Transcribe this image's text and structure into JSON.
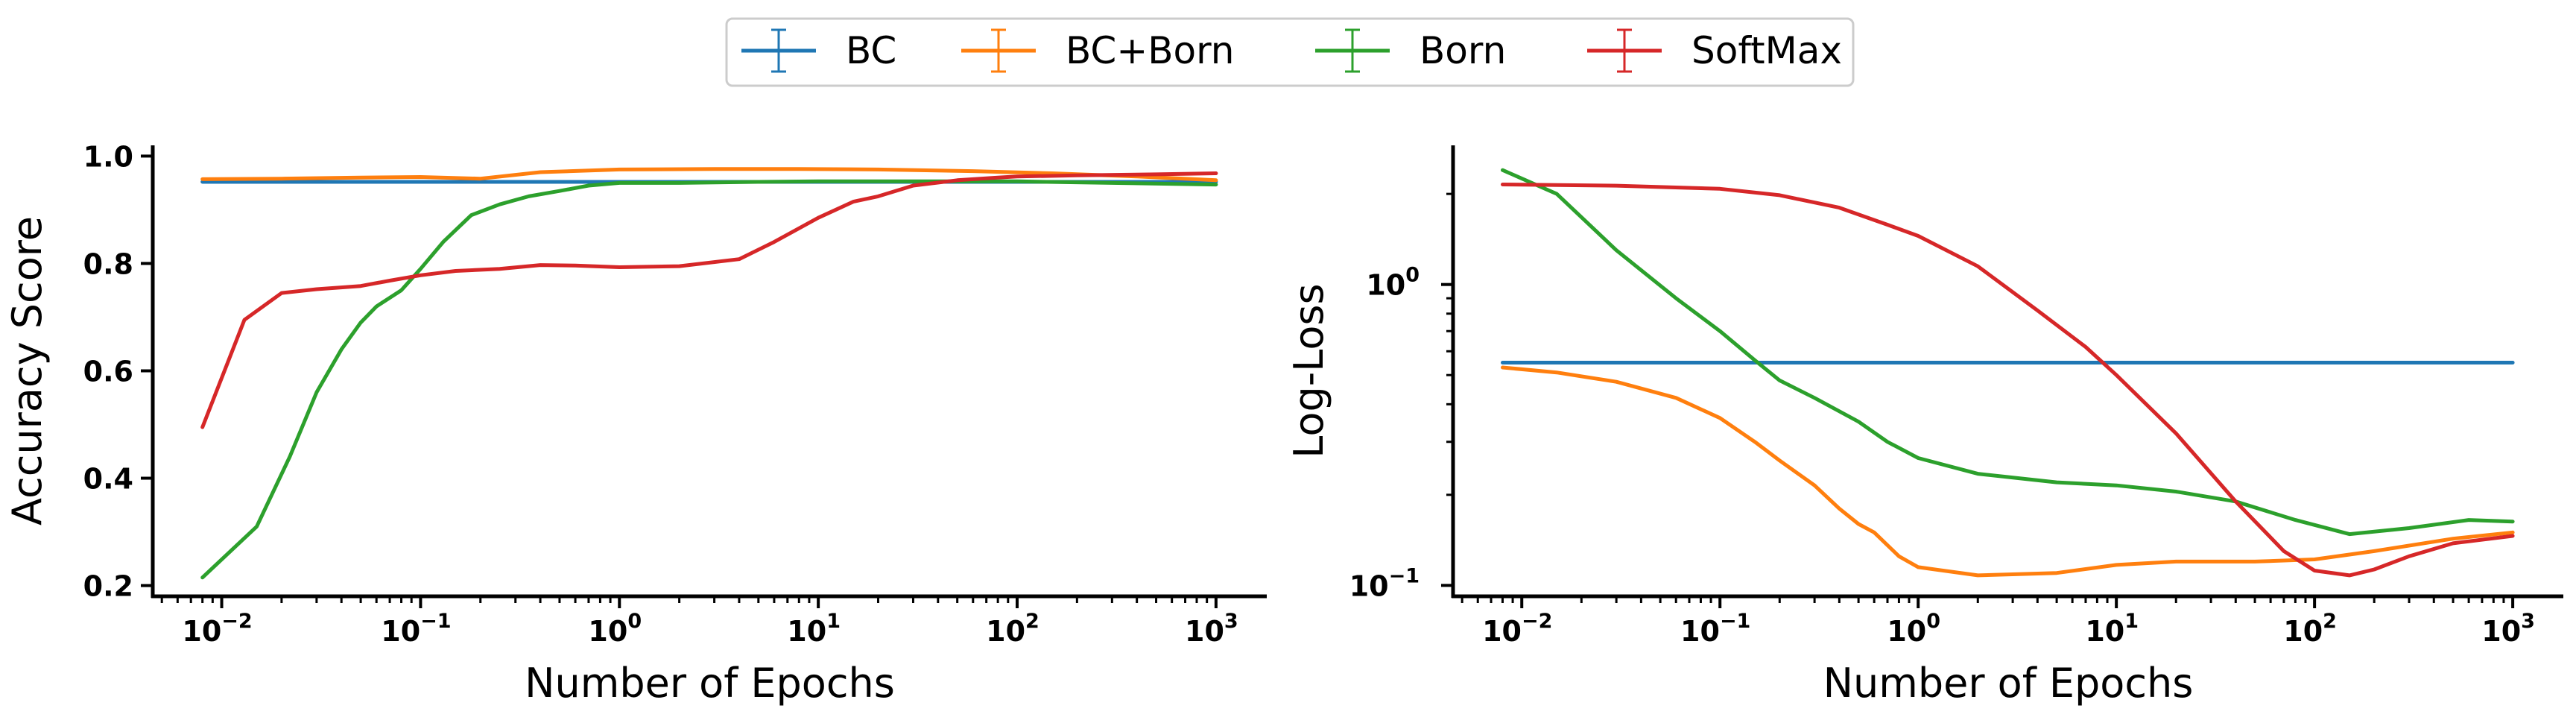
{
  "colors": {
    "BC": "#1f77b4",
    "BC+Born": "#ff7f0e",
    "Born": "#2ca02c",
    "SoftMax": "#d62728"
  },
  "legend": {
    "entries": [
      "BC",
      "BC+Born",
      "Born",
      "SoftMax"
    ],
    "placement": "top-center",
    "marker": "errorbar-line"
  },
  "chart_data": [
    {
      "type": "line",
      "xlabel": "Number of Epochs",
      "ylabel": "Accuracy Score",
      "xscale": "log",
      "xlim": [
        0.0045,
        1800
      ],
      "ylim": [
        0.18,
        1.02
      ],
      "xticks": [
        0.01,
        0.1,
        1,
        10,
        100,
        1000
      ],
      "xtick_labels": [
        {
          "base": "10",
          "exp": "−2"
        },
        {
          "base": "10",
          "exp": "−1"
        },
        {
          "base": "10",
          "exp": "0"
        },
        {
          "base": "10",
          "exp": "1"
        },
        {
          "base": "10",
          "exp": "2"
        },
        {
          "base": "10",
          "exp": "3"
        }
      ],
      "yticks": [
        0.2,
        0.4,
        0.6,
        0.8,
        1.0
      ],
      "ytick_labels": [
        "0.2",
        "0.4",
        "0.6",
        "0.8",
        "1.0"
      ],
      "grid": false,
      "series": [
        {
          "name": "BC",
          "x": [
            0.008,
            0.01,
            0.1,
            1,
            10,
            100,
            1000
          ],
          "y": [
            0.952,
            0.952,
            0.952,
            0.952,
            0.952,
            0.952,
            0.952
          ]
        },
        {
          "name": "BC+Born",
          "x": [
            0.008,
            0.02,
            0.05,
            0.1,
            0.2,
            0.4,
            1,
            3,
            8,
            20,
            60,
            150,
            400,
            1000
          ],
          "y": [
            0.957,
            0.958,
            0.96,
            0.961,
            0.958,
            0.97,
            0.975,
            0.976,
            0.976,
            0.975,
            0.972,
            0.968,
            0.962,
            0.955
          ]
        },
        {
          "name": "Born",
          "x": [
            0.008,
            0.015,
            0.022,
            0.03,
            0.04,
            0.05,
            0.06,
            0.08,
            0.1,
            0.13,
            0.18,
            0.25,
            0.35,
            0.5,
            0.7,
            1,
            2,
            5,
            10,
            30,
            100,
            300,
            1000
          ],
          "y": [
            0.215,
            0.31,
            0.44,
            0.56,
            0.64,
            0.69,
            0.72,
            0.75,
            0.79,
            0.84,
            0.89,
            0.91,
            0.925,
            0.935,
            0.945,
            0.95,
            0.95,
            0.952,
            0.953,
            0.953,
            0.953,
            0.95,
            0.947
          ]
        },
        {
          "name": "SoftMax",
          "x": [
            0.008,
            0.013,
            0.02,
            0.03,
            0.05,
            0.07,
            0.1,
            0.15,
            0.25,
            0.4,
            0.6,
            1,
            2,
            4,
            6,
            10,
            15,
            20,
            30,
            50,
            80,
            100,
            200,
            500,
            1000
          ],
          "y": [
            0.495,
            0.695,
            0.745,
            0.752,
            0.758,
            0.768,
            0.778,
            0.786,
            0.79,
            0.797,
            0.796,
            0.793,
            0.795,
            0.808,
            0.84,
            0.885,
            0.915,
            0.925,
            0.945,
            0.955,
            0.96,
            0.962,
            0.964,
            0.966,
            0.968
          ]
        }
      ]
    },
    {
      "type": "line",
      "xlabel": "Number of Epochs",
      "ylabel": "Log-Loss",
      "xscale": "log",
      "yscale": "log",
      "xlim": [
        0.0045,
        1800
      ],
      "ylim": [
        0.092,
        2.9
      ],
      "xticks": [
        0.01,
        0.1,
        1,
        10,
        100,
        1000
      ],
      "xtick_labels": [
        {
          "base": "10",
          "exp": "−2"
        },
        {
          "base": "10",
          "exp": "−1"
        },
        {
          "base": "10",
          "exp": "0"
        },
        {
          "base": "10",
          "exp": "1"
        },
        {
          "base": "10",
          "exp": "2"
        },
        {
          "base": "10",
          "exp": "3"
        }
      ],
      "yticks": [
        0.1,
        1
      ],
      "ytick_labels": [
        {
          "base": "10",
          "exp": "−1"
        },
        {
          "base": "10",
          "exp": "0"
        }
      ],
      "grid": false,
      "series": [
        {
          "name": "BC",
          "x": [
            0.008,
            1000
          ],
          "y": [
            0.55,
            0.55
          ]
        },
        {
          "name": "BC+Born",
          "x": [
            0.008,
            0.015,
            0.03,
            0.06,
            0.1,
            0.15,
            0.2,
            0.3,
            0.4,
            0.5,
            0.6,
            0.8,
            1,
            2,
            5,
            10,
            20,
            50,
            100,
            200,
            500,
            1000
          ],
          "y": [
            0.53,
            0.51,
            0.475,
            0.42,
            0.36,
            0.3,
            0.26,
            0.215,
            0.18,
            0.16,
            0.15,
            0.125,
            0.115,
            0.108,
            0.11,
            0.117,
            0.12,
            0.12,
            0.122,
            0.13,
            0.143,
            0.15
          ]
        },
        {
          "name": "Born",
          "x": [
            0.008,
            0.015,
            0.03,
            0.06,
            0.1,
            0.15,
            0.2,
            0.3,
            0.5,
            0.7,
            1,
            2,
            5,
            10,
            20,
            40,
            80,
            150,
            300,
            600,
            1000
          ],
          "y": [
            2.4,
            2.0,
            1.3,
            0.9,
            0.7,
            0.56,
            0.48,
            0.42,
            0.35,
            0.3,
            0.265,
            0.235,
            0.22,
            0.215,
            0.205,
            0.19,
            0.165,
            0.148,
            0.155,
            0.165,
            0.163
          ]
        },
        {
          "name": "SoftMax",
          "x": [
            0.008,
            0.03,
            0.1,
            0.2,
            0.4,
            0.7,
            1,
            2,
            4,
            7,
            10,
            20,
            40,
            70,
            100,
            150,
            200,
            300,
            500,
            1000
          ],
          "y": [
            2.15,
            2.13,
            2.08,
            1.98,
            1.8,
            1.58,
            1.45,
            1.15,
            0.82,
            0.62,
            0.5,
            0.32,
            0.19,
            0.13,
            0.112,
            0.108,
            0.113,
            0.125,
            0.138,
            0.146
          ]
        }
      ]
    }
  ]
}
